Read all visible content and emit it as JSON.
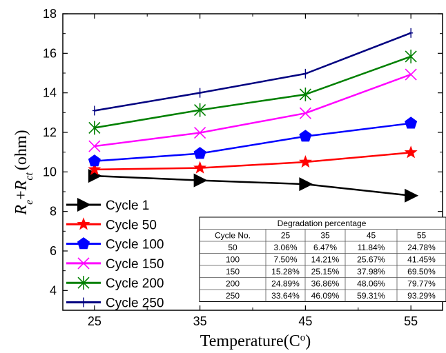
{
  "chart_data": {
    "type": "line",
    "x": [
      25,
      35,
      45,
      55
    ],
    "xlabel": "Temperature(C",
    "xlabel_sup": "o",
    "xlabel_close": ")",
    "ylabel": {
      "r1": "R",
      "sub1": "e",
      "plus": "+",
      "r2": "R",
      "sub2": "ct",
      "unit": "(ohm)"
    },
    "xlim": [
      22,
      58
    ],
    "ylim": [
      3,
      18
    ],
    "xticks": [
      "25",
      "35",
      "45",
      "55"
    ],
    "yticks": [
      "4",
      "6",
      "8",
      "10",
      "12",
      "14",
      "16",
      "18"
    ],
    "legend_position": "bottom-left",
    "series": [
      {
        "name": "Cycle 1",
        "values": [
          9.8,
          9.57,
          9.38,
          8.8
        ],
        "color": "#000000",
        "marker": "triangle-right"
      },
      {
        "name": "Cycle 50",
        "values": [
          10.12,
          10.2,
          10.5,
          10.98
        ],
        "color": "#ff0000",
        "marker": "star"
      },
      {
        "name": "Cycle 100",
        "values": [
          10.55,
          10.93,
          11.8,
          12.46
        ],
        "color": "#0000ff",
        "marker": "pentagon"
      },
      {
        "name": "Cycle 150",
        "values": [
          11.3,
          11.98,
          12.97,
          14.93
        ],
        "color": "#ff00ff",
        "marker": "x"
      },
      {
        "name": "Cycle 200",
        "values": [
          12.23,
          13.13,
          13.92,
          15.84
        ],
        "color": "#008000",
        "marker": "asterisk"
      },
      {
        "name": "Cycle 250",
        "values": [
          13.1,
          14.0,
          14.97,
          17.03
        ],
        "color": "#000080",
        "marker": "plus"
      }
    ],
    "table": {
      "title": "Degradation percentage",
      "columns": [
        "Cycle No.",
        "25",
        "35",
        "45",
        "55"
      ],
      "rows": [
        [
          "50",
          "3.06%",
          "6.47%",
          "11.84%",
          "24.78%"
        ],
        [
          "100",
          "7.50%",
          "14.21%",
          "25.67%",
          "41.45%"
        ],
        [
          "150",
          "15.28%",
          "25.15%",
          "37.98%",
          "69.50%"
        ],
        [
          "200",
          "24.89%",
          "36.86%",
          "48.06%",
          "79.77%"
        ],
        [
          "250",
          "33.64%",
          "46.09%",
          "59.31%",
          "93.29%"
        ]
      ]
    }
  }
}
